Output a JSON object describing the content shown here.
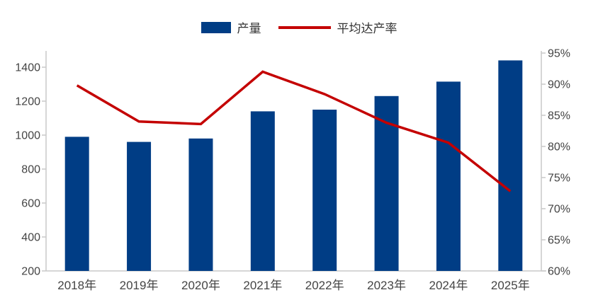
{
  "chart_data": {
    "type": "combo",
    "categories": [
      "2018年",
      "2019年",
      "2020年",
      "2021年",
      "2022年",
      "2023年",
      "2024年",
      "2025年"
    ],
    "series": [
      {
        "name": "产量",
        "type": "bar",
        "axis": "left",
        "color": "#003d85",
        "values": [
          990,
          960,
          980,
          1140,
          1150,
          1230,
          1315,
          1440
        ]
      },
      {
        "name": "平均达产率",
        "type": "line",
        "axis": "right",
        "color": "#c40000",
        "values": [
          89.8,
          84.0,
          83.6,
          92.0,
          88.4,
          83.8,
          80.6,
          72.8
        ]
      }
    ],
    "left_axis": {
      "min": 200,
      "max": 1400,
      "step": 200,
      "tick_labels": [
        "200",
        "400",
        "600",
        "800",
        "1000",
        "1200",
        "1400"
      ]
    },
    "right_axis": {
      "min": 60,
      "max": 95,
      "step": 5,
      "tick_labels": [
        "60%",
        "65%",
        "70%",
        "75%",
        "80%",
        "85%",
        "90%",
        "95%"
      ]
    },
    "legend": {
      "position": "top",
      "entries": [
        "产量",
        "平均达产率"
      ]
    },
    "grid": false,
    "colors": {
      "axis_line": "#c9c9c9",
      "tick_text": "#444444"
    }
  }
}
